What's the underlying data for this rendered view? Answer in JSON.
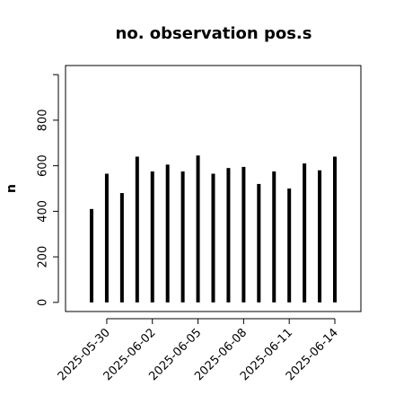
{
  "chart_data": {
    "type": "bar",
    "title": "no. observation pos.s",
    "ylabel": "n",
    "x": [
      "2025-05-29",
      "2025-05-30",
      "2025-05-31",
      "2025-06-01",
      "2025-06-02",
      "2025-06-03",
      "2025-06-04",
      "2025-06-05",
      "2025-06-06",
      "2025-06-07",
      "2025-06-08",
      "2025-06-09",
      "2025-06-10",
      "2025-06-11",
      "2025-06-12",
      "2025-06-13",
      "2025-06-14"
    ],
    "values": [
      410,
      565,
      480,
      640,
      575,
      605,
      575,
      645,
      565,
      590,
      595,
      520,
      575,
      500,
      610,
      580,
      640
    ],
    "color": "#000000",
    "xticks": [
      "2025-05-30",
      "2025-06-02",
      "2025-06-05",
      "2025-06-08",
      "2025-06-11",
      "2025-06-14"
    ],
    "xtick_colors": [
      "#000000",
      "#000000",
      "#228b22",
      "#000000",
      "#000000",
      "#000000"
    ],
    "ylim": [
      -40,
      1040
    ],
    "yticks": [
      0,
      200,
      400,
      600,
      800
    ],
    "ytick_marks_unlabeled": [
      1000
    ]
  }
}
